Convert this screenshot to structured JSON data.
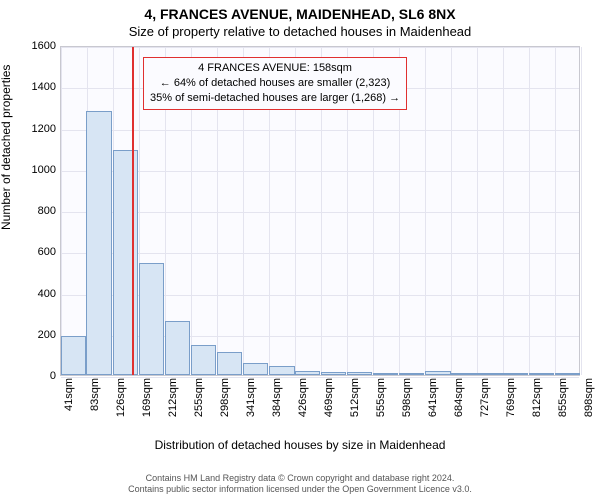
{
  "title": "4, FRANCES AVENUE, MAIDENHEAD, SL6 8NX",
  "subtitle": "Size of property relative to detached houses in Maidenhead",
  "chart": {
    "type": "histogram",
    "ylabel": "Number of detached properties",
    "xlabel": "Distribution of detached houses by size in Maidenhead",
    "background_color": "#fbfbff",
    "grid_color": "#e4e4ef",
    "axis_color": "#c8c8d0",
    "bar_fill": "#d7e5f4",
    "bar_edge": "#7a9ec9",
    "marker_color": "#e03030",
    "annot_border": "#e03030",
    "ylim": [
      0,
      1600
    ],
    "yticks": [
      0,
      200,
      400,
      600,
      800,
      1000,
      1200,
      1400,
      1600
    ],
    "xticks": [
      "41sqm",
      "83sqm",
      "126sqm",
      "169sqm",
      "212sqm",
      "255sqm",
      "298sqm",
      "341sqm",
      "384sqm",
      "426sqm",
      "469sqm",
      "512sqm",
      "555sqm",
      "598sqm",
      "641sqm",
      "684sqm",
      "727sqm",
      "769sqm",
      "812sqm",
      "855sqm",
      "898sqm"
    ],
    "bin_lefts_sqm": [
      41,
      83,
      126,
      169,
      212,
      255,
      298,
      341,
      384,
      426,
      469,
      512,
      555,
      598,
      641,
      684,
      727,
      769,
      812,
      855
    ],
    "bin_width_sqm": 42,
    "values": [
      190,
      1280,
      1090,
      545,
      260,
      145,
      110,
      60,
      45,
      20,
      15,
      15,
      8,
      8,
      20,
      4,
      3,
      2,
      2,
      2
    ],
    "marker_sqm": 158,
    "annot": {
      "line1": "4 FRANCES AVENUE: 158sqm",
      "line2": "← 64% of detached houses are smaller (2,323)",
      "line3": "35% of semi-detached houses are larger (1,268) →"
    },
    "xmin_sqm": 41,
    "xmax_sqm": 898,
    "label_fontsize": 12,
    "tick_fontsize": 11
  },
  "attribution": {
    "line1": "Contains HM Land Registry data © Crown copyright and database right 2024.",
    "line2": "Contains public sector information licensed under the Open Government Licence v3.0."
  }
}
